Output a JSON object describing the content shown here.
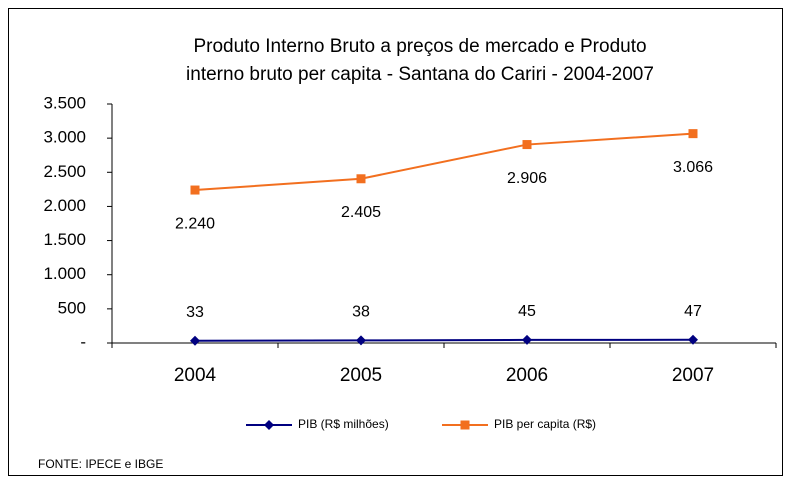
{
  "chart_data": {
    "type": "line",
    "title": [
      "Produto Interno Bruto a preços de mercado  e  Produto",
      "interno bruto per capita  - Santana do Cariri - 2004-2007"
    ],
    "categories": [
      "2004",
      "2005",
      "2006",
      "2007"
    ],
    "series": [
      {
        "name": "PIB (R$ milhões)",
        "color": "#000080",
        "marker": "diamond",
        "label_position": "above",
        "values": [
          33,
          38,
          45,
          47
        ]
      },
      {
        "name": "PIB per capita (R$)",
        "color": "#f26f1f",
        "marker": "square",
        "label_position": "below",
        "values": [
          2240,
          2405,
          2906,
          3066
        ],
        "value_labels": [
          "2.240",
          "2.405",
          "2.906",
          "3.066"
        ]
      }
    ],
    "ylim": [
      0,
      3500
    ],
    "yticks": [
      {
        "value": 0,
        "label": "-"
      },
      500,
      {
        "value": 1000,
        "label": "1.000"
      },
      {
        "value": 1500,
        "label": "1.500"
      },
      {
        "value": 2000,
        "label": "2.000"
      },
      {
        "value": 2500,
        "label": "2.500"
      },
      {
        "value": 3000,
        "label": "3.000"
      },
      {
        "value": 3500,
        "label": "3.500"
      }
    ],
    "grid": false,
    "legend": "bottom",
    "source": "FONTE: IPECE e IBGE"
  }
}
